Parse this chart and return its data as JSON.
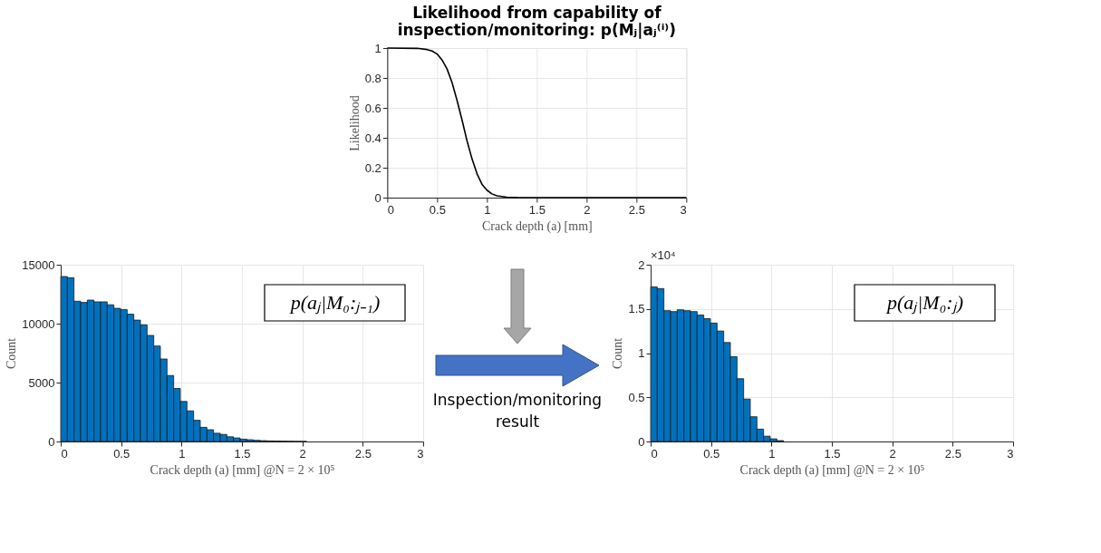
{
  "chart_data": [
    {
      "type": "line",
      "title": "Likelihood from capability of\ninspection/monitoring: p(Mⱼ|aⱼ⁽ⁱ⁾)",
      "xlabel": "Crack depth (a) [mm]",
      "ylabel": "Likelihood",
      "series": [
        {
          "color": "#000000",
          "x": [
            0,
            0.3,
            0.4,
            0.45,
            0.5,
            0.55,
            0.6,
            0.65,
            0.7,
            0.75,
            0.8,
            0.85,
            0.9,
            0.95,
            1.0,
            1.05,
            1.1,
            1.2,
            1.3,
            1.5,
            3
          ],
          "values": [
            1,
            0.998,
            0.99,
            0.98,
            0.96,
            0.92,
            0.86,
            0.77,
            0.65,
            0.52,
            0.38,
            0.26,
            0.16,
            0.09,
            0.05,
            0.025,
            0.012,
            0.003,
            0.001,
            0,
            0
          ]
        }
      ],
      "xlim": [
        0,
        3
      ],
      "xticks": [
        0,
        0.5,
        1,
        1.5,
        2,
        2.5,
        3
      ],
      "ylim": [
        0,
        1
      ],
      "yticks": [
        0,
        0.2,
        0.4,
        0.6,
        0.8,
        1
      ],
      "grid": true,
      "marker": "none",
      "line_style": "solid"
    },
    {
      "type": "histogram",
      "xlabel": "Crack depth (a) [mm] @N = 2 × 10⁵",
      "ylabel": "Count",
      "color": "#0072bd",
      "bins": [
        0,
        0.055,
        0.11,
        0.165,
        0.22,
        0.275,
        0.33,
        0.385,
        0.44,
        0.495,
        0.55,
        0.605,
        0.66,
        0.715,
        0.77,
        0.825,
        0.88,
        0.935,
        0.99,
        1.045,
        1.1,
        1.155,
        1.21,
        1.265,
        1.32,
        1.375,
        1.43,
        1.485,
        1.54,
        1.595,
        1.65,
        1.705,
        1.76,
        1.815,
        1.87,
        1.925,
        1.98,
        2.035
      ],
      "values": [
        14000,
        13900,
        11900,
        11800,
        12000,
        11850,
        11850,
        11600,
        11300,
        11200,
        10800,
        10300,
        9900,
        9000,
        8100,
        7000,
        5600,
        4500,
        3400,
        2600,
        1800,
        1200,
        1000,
        700,
        600,
        400,
        300,
        200,
        150,
        100,
        70,
        50,
        40,
        30,
        20,
        10,
        10
      ],
      "xlim": [
        0,
        3
      ],
      "xticks": [
        0,
        0.5,
        1,
        1.5,
        2,
        2.5,
        3
      ],
      "ylim": [
        0,
        15000
      ],
      "yticks": [
        0,
        5000,
        10000,
        15000
      ],
      "grid": true,
      "annotations": [
        "p(aⱼ|M₀:ⱼ₋₁)"
      ]
    },
    {
      "type": "histogram",
      "xlabel": "Crack depth (a) [mm] @N = 2 × 10⁵",
      "ylabel": "Count",
      "color": "#0072bd",
      "bins": [
        0,
        0.055,
        0.11,
        0.165,
        0.22,
        0.275,
        0.33,
        0.385,
        0.44,
        0.495,
        0.55,
        0.605,
        0.66,
        0.715,
        0.77,
        0.825,
        0.88,
        0.935,
        0.99,
        1.045,
        1.1
      ],
      "values": [
        1.75,
        1.73,
        1.48,
        1.47,
        1.49,
        1.48,
        1.47,
        1.43,
        1.39,
        1.34,
        1.25,
        1.12,
        0.96,
        0.71,
        0.48,
        0.28,
        0.14,
        0.06,
        0.03,
        0.01
      ],
      "xlim": [
        0,
        3
      ],
      "xticks": [
        0,
        0.5,
        1,
        1.5,
        2,
        2.5,
        3
      ],
      "ylim": [
        0,
        2
      ],
      "yticks": [
        0,
        0.5,
        1,
        1.5,
        2
      ],
      "grid": true,
      "annotations": [
        "p(aⱼ|M₀:ⱼ)",
        "×10⁴",
        "Inspection/monitoring\nresult"
      ]
    }
  ]
}
